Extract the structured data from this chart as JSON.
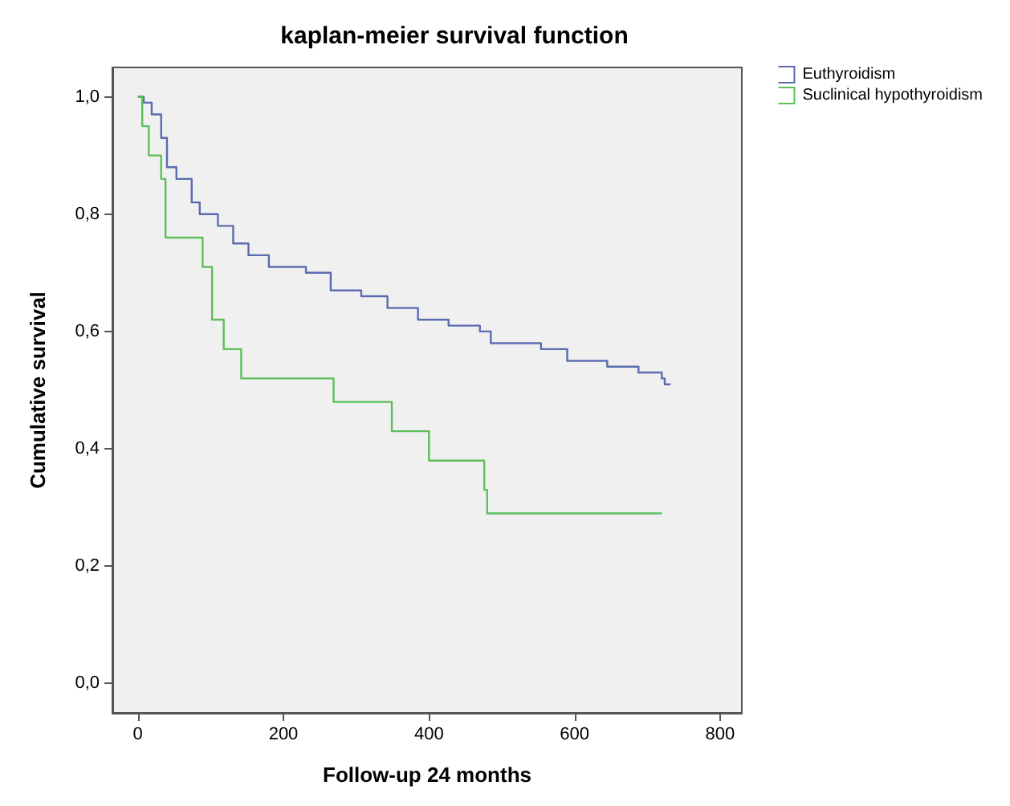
{
  "chart_data": {
    "type": "step",
    "title": "kaplan-meier survival function",
    "xlabel": "Follow-up 24 months",
    "ylabel": "Cumulative survival",
    "xlim": [
      -35,
      830
    ],
    "xticks": [
      0,
      200,
      400,
      600,
      800
    ],
    "ylim": [
      -0.05,
      1.05
    ],
    "yticks": [
      {
        "value": 0,
        "label": "0,0"
      },
      {
        "value": 0.2,
        "label": "0,2"
      },
      {
        "value": 0.4,
        "label": "0,4"
      },
      {
        "value": 0.6,
        "label": "0,6"
      },
      {
        "value": 0.8,
        "label": "0,8"
      },
      {
        "value": 1,
        "label": "1,0"
      }
    ],
    "legend": "top right",
    "grid": false,
    "marker": "none",
    "series": [
      {
        "name": "Euthyroidism",
        "color": "#5b6bb0",
        "x": [
          0,
          8,
          19,
          32,
          40,
          53,
          74,
          85,
          110,
          131,
          152,
          180,
          231,
          265,
          307,
          343,
          385,
          427,
          470,
          485,
          554,
          590,
          645,
          688,
          720,
          724,
          732
        ],
        "values": [
          1,
          0.99,
          0.97,
          0.93,
          0.88,
          0.86,
          0.82,
          0.8,
          0.78,
          0.75,
          0.73,
          0.71,
          0.7,
          0.67,
          0.66,
          0.64,
          0.62,
          0.61,
          0.6,
          0.58,
          0.57,
          0.55,
          0.54,
          0.53,
          0.52,
          0.51,
          0.51
        ]
      },
      {
        "name": "Suclinical hypothyroidism",
        "color": "#5cbf5c",
        "x": [
          0,
          6,
          15,
          32,
          38,
          89,
          102,
          118,
          142,
          269,
          349,
          400,
          476,
          480,
          720
        ],
        "values": [
          1,
          0.95,
          0.9,
          0.86,
          0.76,
          0.71,
          0.62,
          0.57,
          0.52,
          0.48,
          0.43,
          0.38,
          0.33,
          0.29,
          0.29
        ]
      }
    ]
  }
}
